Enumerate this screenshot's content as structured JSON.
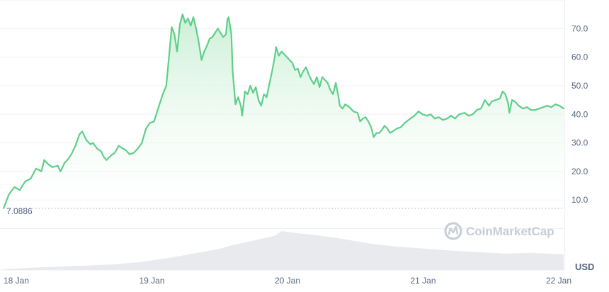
{
  "chart_data": {
    "type": "area",
    "currency": "USD",
    "watermark": "CoinMarketCap",
    "colors": {
      "line": "#5fcf89",
      "area_top": "#c8efd3",
      "grid": "#eef0f3",
      "baseline": "#a6b0c3",
      "volume": "#e8eaee",
      "text": "#58667e"
    },
    "x_range": [
      0,
      4.95
    ],
    "price_range": [
      0,
      80
    ],
    "y_ticks": [
      "10.0",
      "20.0",
      "30.0",
      "40.0",
      "50.0",
      "60.0",
      "70.0"
    ],
    "x_ticks": [
      {
        "label": "18 Jan",
        "pos": 0
      },
      {
        "label": "19 Jan",
        "pos": 1
      },
      {
        "label": "20 Jan",
        "pos": 2
      },
      {
        "label": "21 Jan",
        "pos": 3
      },
      {
        "label": "22 Jan",
        "pos": 4
      }
    ],
    "baseline_value": 7.0886,
    "baseline_label": "7.0886",
    "price": [
      [
        0.0,
        7.1
      ],
      [
        0.04,
        12.0
      ],
      [
        0.08,
        14.5
      ],
      [
        0.12,
        13.5
      ],
      [
        0.16,
        16.5
      ],
      [
        0.2,
        17.5
      ],
      [
        0.24,
        21.0
      ],
      [
        0.28,
        20.0
      ],
      [
        0.3,
        24.0
      ],
      [
        0.33,
        22.5
      ],
      [
        0.36,
        21.5
      ],
      [
        0.4,
        22.0
      ],
      [
        0.42,
        20.0
      ],
      [
        0.45,
        23.0
      ],
      [
        0.48,
        24.5
      ],
      [
        0.5,
        26.0
      ],
      [
        0.53,
        29.0
      ],
      [
        0.56,
        33.0
      ],
      [
        0.58,
        34.0
      ],
      [
        0.61,
        31.0
      ],
      [
        0.64,
        29.5
      ],
      [
        0.66,
        30.0
      ],
      [
        0.69,
        28.0
      ],
      [
        0.72,
        27.0
      ],
      [
        0.74,
        25.0
      ],
      [
        0.76,
        24.0
      ],
      [
        0.79,
        25.5
      ],
      [
        0.82,
        26.5
      ],
      [
        0.85,
        29.0
      ],
      [
        0.88,
        28.0
      ],
      [
        0.9,
        27.5
      ],
      [
        0.93,
        26.0
      ],
      [
        0.96,
        26.5
      ],
      [
        0.99,
        28.0
      ],
      [
        1.02,
        30.0
      ],
      [
        1.05,
        35.0
      ],
      [
        1.08,
        37.0
      ],
      [
        1.11,
        37.5
      ],
      [
        1.14,
        42.0
      ],
      [
        1.17,
        46.5
      ],
      [
        1.2,
        50.0
      ],
      [
        1.22,
        60.0
      ],
      [
        1.24,
        70.5
      ],
      [
        1.26,
        68.0
      ],
      [
        1.28,
        62.0
      ],
      [
        1.3,
        71.5
      ],
      [
        1.32,
        75.0
      ],
      [
        1.34,
        72.0
      ],
      [
        1.36,
        73.5
      ],
      [
        1.38,
        71.0
      ],
      [
        1.4,
        74.0
      ],
      [
        1.42,
        70.0
      ],
      [
        1.44,
        65.0
      ],
      [
        1.46,
        59.0
      ],
      [
        1.48,
        62.0
      ],
      [
        1.5,
        64.0
      ],
      [
        1.52,
        66.5
      ],
      [
        1.54,
        67.0
      ],
      [
        1.56,
        68.5
      ],
      [
        1.58,
        70.0
      ],
      [
        1.6,
        68.5
      ],
      [
        1.62,
        67.0
      ],
      [
        1.64,
        68.0
      ],
      [
        1.65,
        73.0
      ],
      [
        1.66,
        74.0
      ],
      [
        1.68,
        68.0
      ],
      [
        1.69,
        55.0
      ],
      [
        1.7,
        49.0
      ],
      [
        1.71,
        43.5
      ],
      [
        1.73,
        46.0
      ],
      [
        1.75,
        43.0
      ],
      [
        1.76,
        39.5
      ],
      [
        1.78,
        48.0
      ],
      [
        1.8,
        47.0
      ],
      [
        1.82,
        50.0
      ],
      [
        1.84,
        47.5
      ],
      [
        1.86,
        49.5
      ],
      [
        1.88,
        45.0
      ],
      [
        1.9,
        43.0
      ],
      [
        1.92,
        47.0
      ],
      [
        1.94,
        46.0
      ],
      [
        1.96,
        50.5
      ],
      [
        1.98,
        55.0
      ],
      [
        2.0,
        60.0
      ],
      [
        2.01,
        63.5
      ],
      [
        2.03,
        60.5
      ],
      [
        2.05,
        62.0
      ],
      [
        2.07,
        61.0
      ],
      [
        2.09,
        60.0
      ],
      [
        2.11,
        59.0
      ],
      [
        2.13,
        58.0
      ],
      [
        2.15,
        55.5
      ],
      [
        2.17,
        56.0
      ],
      [
        2.19,
        53.0
      ],
      [
        2.21,
        55.0
      ],
      [
        2.23,
        56.5
      ],
      [
        2.25,
        54.0
      ],
      [
        2.27,
        52.0
      ],
      [
        2.29,
        50.5
      ],
      [
        2.31,
        53.0
      ],
      [
        2.33,
        49.5
      ],
      [
        2.35,
        53.0
      ],
      [
        2.37,
        52.0
      ],
      [
        2.39,
        51.0
      ],
      [
        2.41,
        48.5
      ],
      [
        2.43,
        47.0
      ],
      [
        2.45,
        51.0
      ],
      [
        2.47,
        46.0
      ],
      [
        2.48,
        43.0
      ],
      [
        2.5,
        42.0
      ],
      [
        2.52,
        43.5
      ],
      [
        2.55,
        42.5
      ],
      [
        2.58,
        41.0
      ],
      [
        2.61,
        40.5
      ],
      [
        2.63,
        37.5
      ],
      [
        2.65,
        38.5
      ],
      [
        2.67,
        39.0
      ],
      [
        2.69,
        37.5
      ],
      [
        2.71,
        35.5
      ],
      [
        2.73,
        32.0
      ],
      [
        2.75,
        33.5
      ],
      [
        2.77,
        33.5
      ],
      [
        2.79,
        34.5
      ],
      [
        2.81,
        36.0
      ],
      [
        2.83,
        35.0
      ],
      [
        2.85,
        33.5
      ],
      [
        2.87,
        34.0
      ],
      [
        2.9,
        35.0
      ],
      [
        2.93,
        35.5
      ],
      [
        2.96,
        37.0
      ],
      [
        3.0,
        38.5
      ],
      [
        3.03,
        39.5
      ],
      [
        3.06,
        41.0
      ],
      [
        3.09,
        40.0
      ],
      [
        3.12,
        39.5
      ],
      [
        3.15,
        40.0
      ],
      [
        3.18,
        38.5
      ],
      [
        3.21,
        39.0
      ],
      [
        3.24,
        38.0
      ],
      [
        3.27,
        38.5
      ],
      [
        3.3,
        39.5
      ],
      [
        3.33,
        38.5
      ],
      [
        3.36,
        40.0
      ],
      [
        3.4,
        40.5
      ],
      [
        3.43,
        39.5
      ],
      [
        3.46,
        40.0
      ],
      [
        3.49,
        41.5
      ],
      [
        3.52,
        42.0
      ],
      [
        3.55,
        45.0
      ],
      [
        3.58,
        43.0
      ],
      [
        3.6,
        44.5
      ],
      [
        3.63,
        45.0
      ],
      [
        3.66,
        45.5
      ],
      [
        3.68,
        48.0
      ],
      [
        3.7,
        47.0
      ],
      [
        3.72,
        44.0
      ],
      [
        3.73,
        40.5
      ],
      [
        3.75,
        45.0
      ],
      [
        3.77,
        44.5
      ],
      [
        3.8,
        43.0
      ],
      [
        3.83,
        42.0
      ],
      [
        3.86,
        42.5
      ],
      [
        3.89,
        41.5
      ],
      [
        3.92,
        41.5
      ],
      [
        3.95,
        42.0
      ],
      [
        3.98,
        42.5
      ],
      [
        4.01,
        43.0
      ],
      [
        4.04,
        42.5
      ],
      [
        4.07,
        43.5
      ],
      [
        4.1,
        43.0
      ],
      [
        4.13,
        42.0
      ]
    ],
    "volume": [
      [
        0.0,
        0.02
      ],
      [
        0.2,
        0.06
      ],
      [
        0.5,
        0.1
      ],
      [
        0.8,
        0.14
      ],
      [
        1.0,
        0.2
      ],
      [
        1.2,
        0.3
      ],
      [
        1.4,
        0.42
      ],
      [
        1.6,
        0.55
      ],
      [
        1.7,
        0.65
      ],
      [
        1.8,
        0.72
      ],
      [
        2.0,
        0.88
      ],
      [
        2.05,
        1.0
      ],
      [
        2.15,
        0.95
      ],
      [
        2.3,
        0.9
      ],
      [
        2.5,
        0.8
      ],
      [
        2.7,
        0.68
      ],
      [
        2.9,
        0.6
      ],
      [
        3.1,
        0.55
      ],
      [
        3.3,
        0.5
      ],
      [
        3.5,
        0.46
      ],
      [
        3.7,
        0.42
      ],
      [
        3.9,
        0.44
      ],
      [
        4.13,
        0.4
      ]
    ]
  }
}
